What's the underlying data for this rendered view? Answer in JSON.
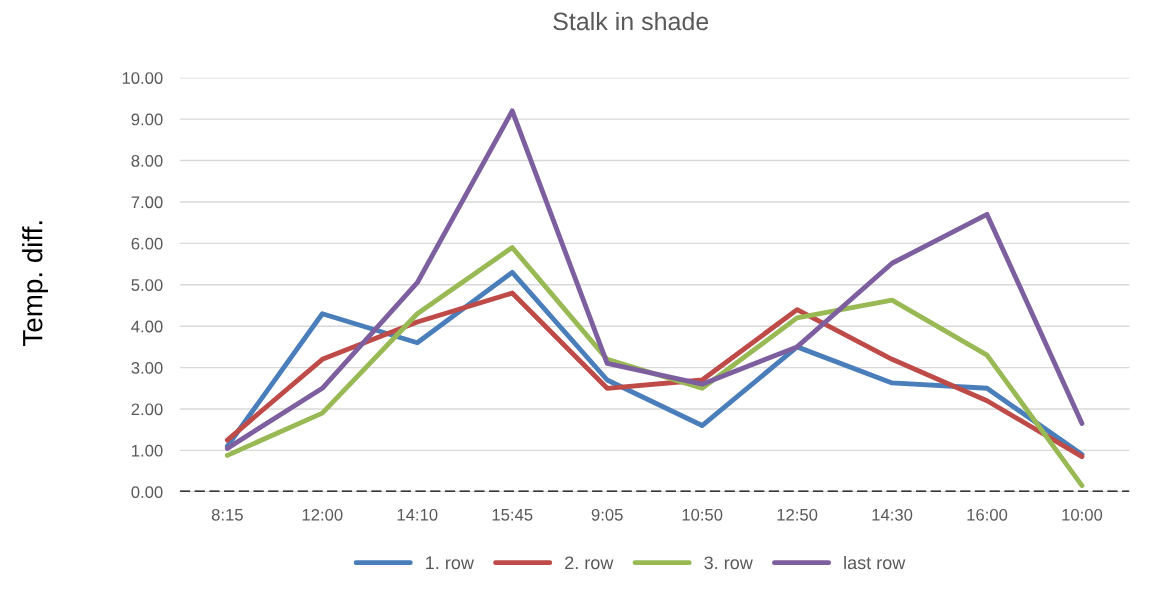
{
  "chart_data": {
    "type": "line",
    "title": "Stalk in shade",
    "ylabel": "Temp. diff.",
    "categories": [
      "8:15",
      "12:00",
      "14:10",
      "15:45",
      "9:05",
      "10:50",
      "12:50",
      "14:30",
      "16:00",
      "10:00"
    ],
    "series": [
      {
        "name": "1. row",
        "color": "#4a7ebb",
        "values": [
          1.1,
          4.3,
          3.6,
          5.3,
          2.7,
          1.6,
          3.5,
          2.63,
          2.5,
          0.9
        ]
      },
      {
        "name": "2. row",
        "color": "#be4b48",
        "values": [
          1.25,
          3.2,
          4.1,
          4.8,
          2.5,
          2.7,
          4.4,
          3.2,
          2.2,
          0.85
        ]
      },
      {
        "name": "3. row",
        "color": "#98b954",
        "values": [
          0.88,
          1.9,
          4.3,
          5.9,
          3.2,
          2.5,
          4.2,
          4.63,
          3.3,
          0.15
        ]
      },
      {
        "name": "last row",
        "color": "#7d5fa0",
        "values": [
          1.05,
          2.5,
          5.05,
          9.2,
          3.1,
          2.6,
          3.5,
          5.52,
          6.7,
          1.65
        ]
      }
    ],
    "ylim": [
      0,
      10
    ],
    "yticks": [
      {
        "value": 0,
        "label": "0.00"
      },
      {
        "value": 1,
        "label": "1.00"
      },
      {
        "value": 2,
        "label": "2.00"
      },
      {
        "value": 3,
        "label": "3.00"
      },
      {
        "value": 4,
        "label": "4.00"
      },
      {
        "value": 5,
        "label": "5.00"
      },
      {
        "value": 6,
        "label": "6.00"
      },
      {
        "value": 7,
        "label": "7.00"
      },
      {
        "value": 8,
        "label": "8.00"
      },
      {
        "value": 9,
        "label": "9.00"
      },
      {
        "value": 10,
        "label": "10.00"
      }
    ],
    "ref_lines": [
      {
        "axis": "y",
        "value": 0,
        "color": "#000000",
        "line_style": "dashed"
      }
    ],
    "grid": "y",
    "legend": "bottom",
    "marker": "none",
    "line_style": "solid"
  }
}
